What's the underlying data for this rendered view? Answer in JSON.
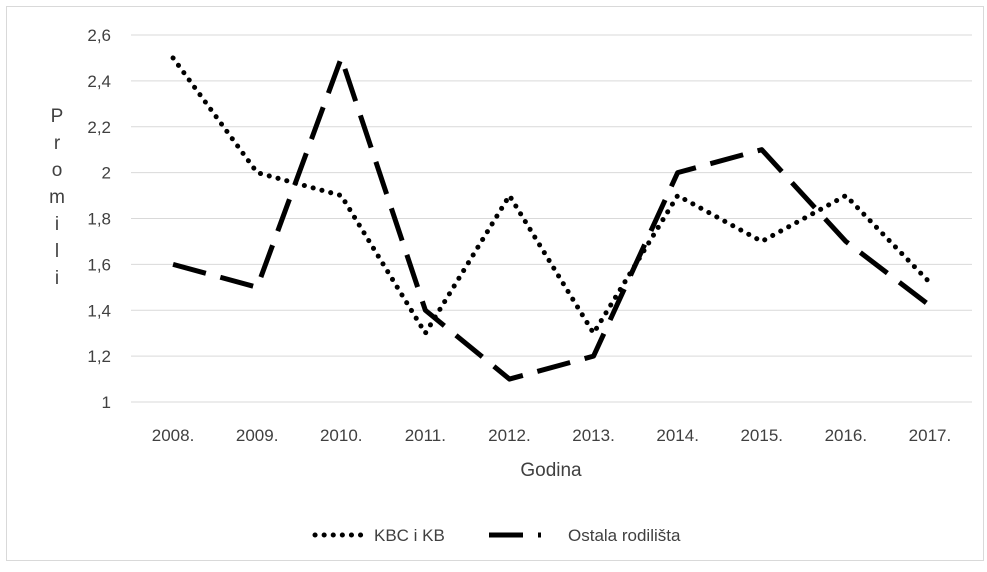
{
  "chart_data": {
    "type": "line",
    "title": "",
    "xlabel": "Godina",
    "ylabel": "Promili",
    "categories": [
      "2008.",
      "2009.",
      "2010.",
      "2011.",
      "2012.",
      "2013.",
      "2014.",
      "2015.",
      "2016.",
      "2017."
    ],
    "yticks": [
      "1",
      "1,2",
      "1,4",
      "1,6",
      "1,8",
      "2",
      "2,2",
      "2,4",
      "2,6"
    ],
    "ylim": [
      1,
      2.6
    ],
    "grid": true,
    "legend_position": "bottom",
    "series": [
      {
        "name": "KBC i KB",
        "style": "dotted",
        "color": "#000000",
        "values": [
          2.5,
          2.0,
          1.9,
          1.3,
          1.9,
          1.3,
          1.9,
          1.7,
          1.9,
          1.52
        ]
      },
      {
        "name": "Ostala rodilišta",
        "style": "dashed",
        "color": "#000000",
        "values": [
          1.6,
          1.5,
          2.5,
          1.4,
          1.1,
          1.2,
          2.0,
          2.1,
          1.7,
          1.42
        ]
      }
    ]
  }
}
